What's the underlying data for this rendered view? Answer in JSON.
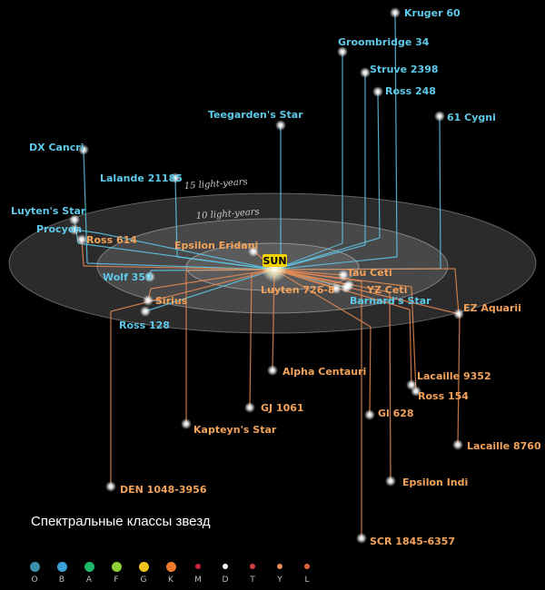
{
  "sun_label": "SUN",
  "rings": [
    {
      "label": "10 light-years"
    },
    {
      "label": "15 light-years"
    }
  ],
  "stars": [
    {
      "name": "Kruger 60",
      "color": "cyan"
    },
    {
      "name": "Groombridge 34",
      "color": "cyan"
    },
    {
      "name": "Struve 2398",
      "color": "cyan"
    },
    {
      "name": "Ross 248",
      "color": "cyan"
    },
    {
      "name": "61 Cygni",
      "color": "cyan"
    },
    {
      "name": "Teegarden's Star",
      "color": "cyan"
    },
    {
      "name": "DX Cancri",
      "color": "cyan"
    },
    {
      "name": "Lalande 21185",
      "color": "cyan"
    },
    {
      "name": "Luyten's Star",
      "color": "cyan"
    },
    {
      "name": "Procyon",
      "color": "cyan"
    },
    {
      "name": "Ross 614",
      "color": "orange"
    },
    {
      "name": "Epsilon Eridani",
      "color": "orange"
    },
    {
      "name": "Wolf 359",
      "color": "cyan"
    },
    {
      "name": "Sirius",
      "color": "orange"
    },
    {
      "name": "Ross 128",
      "color": "cyan"
    },
    {
      "name": "Tau Ceti",
      "color": "orange"
    },
    {
      "name": "YZ Ceti",
      "color": "orange"
    },
    {
      "name": "Luyten 726-8",
      "color": "orange"
    },
    {
      "name": "Barnard's Star",
      "color": "cyan"
    },
    {
      "name": "EZ Aquarii",
      "color": "orange"
    },
    {
      "name": "Alpha Centauri",
      "color": "orange"
    },
    {
      "name": "Lacaille 9352",
      "color": "orange"
    },
    {
      "name": "Ross 154",
      "color": "orange"
    },
    {
      "name": "GJ 1061",
      "color": "orange"
    },
    {
      "name": "Gl 628",
      "color": "orange"
    },
    {
      "name": "Kapteyn's Star",
      "color": "orange"
    },
    {
      "name": "Lacaille 8760",
      "color": "orange"
    },
    {
      "name": "Epsilon Indi",
      "color": "orange"
    },
    {
      "name": "DEN 1048-3956",
      "color": "orange"
    },
    {
      "name": "SCR 1845-6357",
      "color": "orange"
    }
  ],
  "caption": "Спектральные классы звезд",
  "legend": [
    {
      "label": "O",
      "color": "#3b8fa8"
    },
    {
      "label": "B",
      "color": "#3aa0d8"
    },
    {
      "label": "A",
      "color": "#1fb86a"
    },
    {
      "label": "F",
      "color": "#8ed238"
    },
    {
      "label": "G",
      "color": "#f2c41c"
    },
    {
      "label": "K",
      "color": "#ee7a2a"
    },
    {
      "label": "M",
      "color": "#c8243c"
    },
    {
      "label": "D",
      "color": "#ffffff"
    },
    {
      "label": "T",
      "color": "#d0403c"
    },
    {
      "label": "Y",
      "color": "#e88a5a"
    },
    {
      "label": "L",
      "color": "#e06838"
    }
  ]
}
